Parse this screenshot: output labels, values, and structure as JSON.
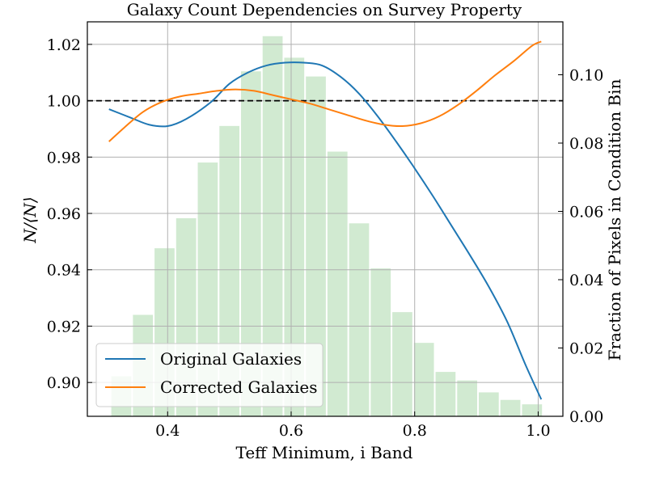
{
  "chart_data": {
    "type": "line",
    "title": "Galaxy Count Dependencies on Survey Property",
    "xlabel": "Teff Minimum, i Band",
    "ylabel": "N/⟨N⟩",
    "ylabel_right": "Fraction of Pixels in Condition Bin",
    "xlim": [
      0.27,
      1.04
    ],
    "ylim": [
      0.888,
      1.028
    ],
    "ylim_right": [
      0.0,
      0.1155
    ],
    "xticks": [
      0.4,
      0.6,
      0.8,
      1.0
    ],
    "xtick_labels": [
      "0.4",
      "0.6",
      "0.8",
      "1.0"
    ],
    "yticks": [
      0.9,
      0.92,
      0.94,
      0.96,
      0.98,
      1.0,
      1.02
    ],
    "ytick_labels": [
      "0.90",
      "0.92",
      "0.94",
      "0.96",
      "0.98",
      "1.00",
      "1.02"
    ],
    "yticks_right": [
      0.0,
      0.02,
      0.04,
      0.06,
      0.08,
      0.1
    ],
    "ytick_labels_right": [
      "0.00",
      "0.02",
      "0.04",
      "0.06",
      "0.08",
      "0.10"
    ],
    "grid": true,
    "reference_line": {
      "y": 1.0,
      "style": "dashed",
      "color": "#000000"
    },
    "legend_position": "lower-left",
    "series": [
      {
        "name": "Original Galaxies",
        "color": "#1f77b4",
        "x": [
          0.305,
          0.34,
          0.37,
          0.4,
          0.43,
          0.47,
          0.5,
          0.53,
          0.56,
          0.59,
          0.62,
          0.65,
          0.68,
          0.71,
          0.74,
          0.77,
          0.8,
          0.83,
          0.86,
          0.89,
          0.92,
          0.95,
          0.98,
          1.005
        ],
        "y": [
          0.997,
          0.994,
          0.9915,
          0.991,
          0.9935,
          0.9995,
          1.006,
          1.01,
          1.0125,
          1.0135,
          1.0135,
          1.0125,
          1.0085,
          1.0025,
          0.9945,
          0.9855,
          0.976,
          0.966,
          0.9555,
          0.945,
          0.934,
          0.9215,
          0.906,
          0.894
        ]
      },
      {
        "name": "Corrected Galaxies",
        "color": "#ff7f0e",
        "x": [
          0.305,
          0.33,
          0.36,
          0.39,
          0.42,
          0.45,
          0.48,
          0.51,
          0.54,
          0.57,
          0.6,
          0.63,
          0.66,
          0.69,
          0.72,
          0.75,
          0.78,
          0.81,
          0.84,
          0.87,
          0.9,
          0.93,
          0.96,
          0.99,
          1.005
        ],
        "y": [
          0.9855,
          0.9905,
          0.996,
          0.9995,
          1.0015,
          1.0025,
          1.0035,
          1.004,
          1.0035,
          1.002,
          1.0005,
          0.999,
          0.997,
          0.995,
          0.993,
          0.9915,
          0.991,
          0.992,
          0.9945,
          0.9985,
          1.0035,
          1.009,
          1.014,
          1.0195,
          1.021
        ]
      }
    ],
    "histogram": {
      "color": "#2ca02c",
      "opacity": 0.22,
      "bin_width": 0.035,
      "centers": [
        0.325,
        0.36,
        0.395,
        0.43,
        0.465,
        0.5,
        0.535,
        0.57,
        0.605,
        0.64,
        0.675,
        0.71,
        0.745,
        0.78,
        0.815,
        0.85,
        0.885,
        0.92,
        0.955,
        0.99
      ],
      "values": [
        0.0117,
        0.0297,
        0.0492,
        0.058,
        0.0743,
        0.085,
        0.101,
        0.1113,
        0.105,
        0.0995,
        0.0775,
        0.0565,
        0.0433,
        0.0305,
        0.0215,
        0.013,
        0.0105,
        0.007,
        0.0048,
        0.0035
      ]
    }
  }
}
